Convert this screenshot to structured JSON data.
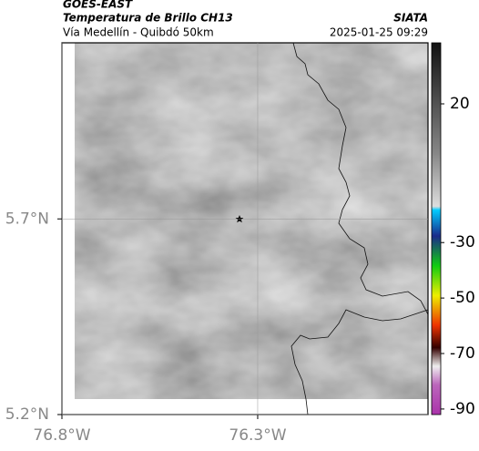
{
  "header": {
    "source": "GOES-EAST",
    "title": "Temperatura de Brillo CH13",
    "subtitle": "Vía Medellín - Quibdó 50km",
    "agency": "SIATA",
    "timestamp": "2025-01-25 09:29"
  },
  "map": {
    "xlim": [
      -76.8,
      -75.865
    ],
    "ylim": [
      5.2,
      6.15
    ],
    "xticks": [
      {
        "value": -76.8,
        "label": "76.8°W"
      },
      {
        "value": -76.3,
        "label": "76.3°W"
      }
    ],
    "yticks": [
      {
        "value": 5.2,
        "label": "5.2°N"
      },
      {
        "value": 5.7,
        "label": "5.7°N"
      }
    ],
    "grid": true
  },
  "colorbar": {
    "lim": [
      -92,
      42
    ],
    "ticks": [
      20,
      -30,
      -50,
      -70,
      -90
    ]
  }
}
